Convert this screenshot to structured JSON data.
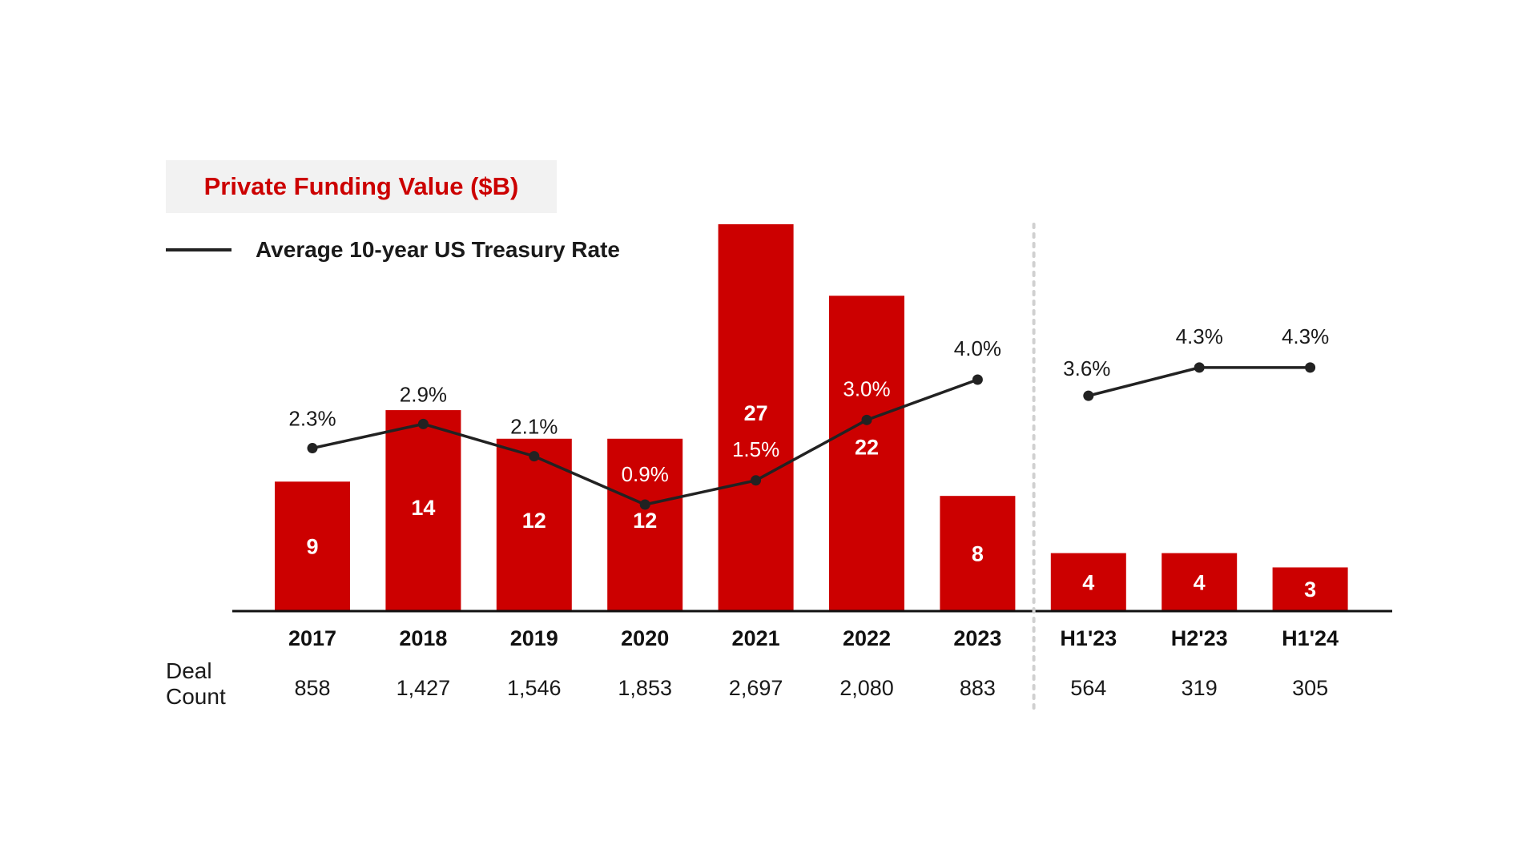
{
  "colors": {
    "bar": "#cc0000",
    "line": "#222222",
    "legend_title": "#cc0000",
    "legend_bg": "#f2f2f2",
    "divider": "#d0d0d0"
  },
  "legend": {
    "bar_label": "Private Funding Value ($B)",
    "line_label": "Average 10-year US Treasury Rate"
  },
  "deal_count_label": "Deal\nCount",
  "chart_data": {
    "type": "bar",
    "title": "",
    "categories": [
      "2017",
      "2018",
      "2019",
      "2020",
      "2021",
      "2022",
      "2023",
      "H1'23",
      "H2'23",
      "H1'24"
    ],
    "series": [
      {
        "name": "Private Funding Value ($B)",
        "type": "bar",
        "values": [
          9,
          14,
          12,
          12,
          27,
          22,
          8,
          4,
          4,
          3
        ]
      },
      {
        "name": "Average 10-year US Treasury Rate",
        "type": "line",
        "values": [
          2.3,
          2.9,
          2.1,
          0.9,
          1.5,
          3.0,
          4.0,
          3.6,
          4.3,
          4.3
        ],
        "labels": [
          "2.3%",
          "2.9%",
          "2.1%",
          "0.9%",
          "1.5%",
          "3.0%",
          "4.0%",
          "3.6%",
          "4.3%",
          "4.3%"
        ]
      }
    ],
    "line_segments": [
      [
        0,
        6
      ],
      [
        7,
        9
      ]
    ],
    "deal_counts": [
      "858",
      "1,427",
      "1,546",
      "1,853",
      "2,697",
      "2,080",
      "883",
      "564",
      "319",
      "305"
    ],
    "divider_after_category": "2023",
    "ylim_bar": [
      0,
      27
    ],
    "ylim_line": [
      0,
      5
    ],
    "legend_position": "top-left",
    "grid": false
  }
}
